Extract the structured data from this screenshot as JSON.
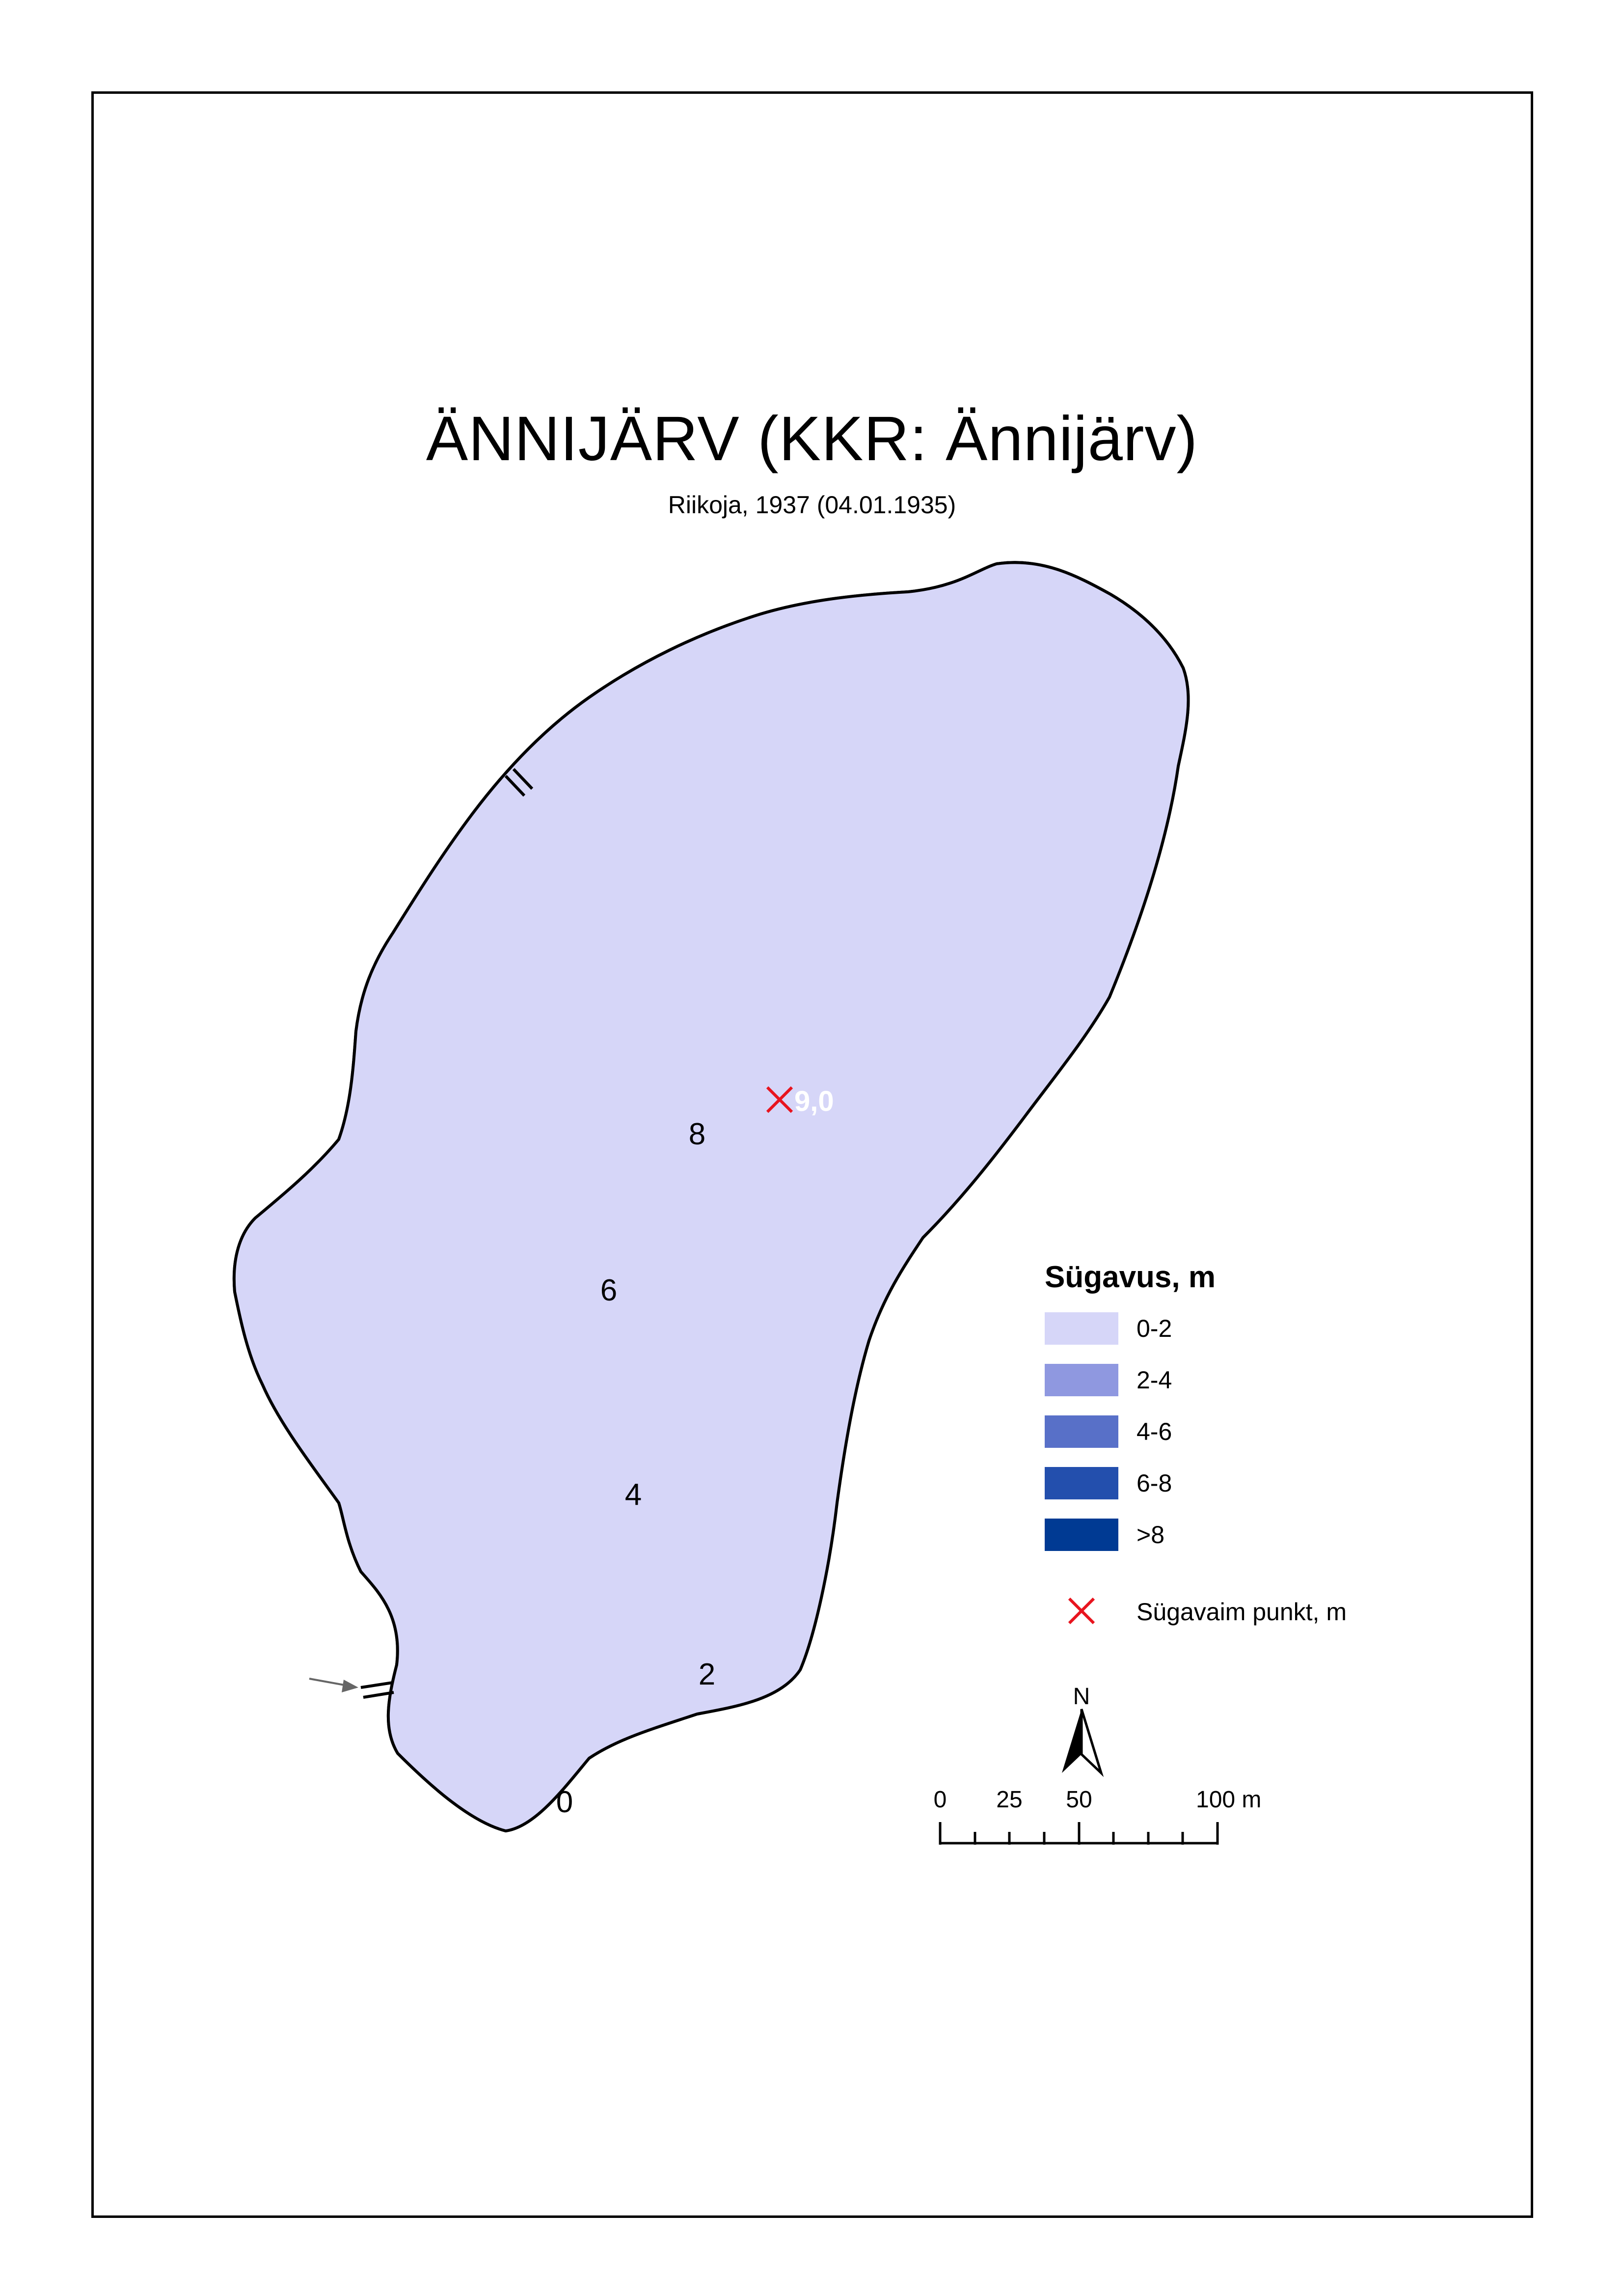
{
  "title": "ÄNNIJÄRV (KKR: Ännijärv)",
  "subtitle": "Riikoja, 1937 (04.01.1935)",
  "colors": {
    "depth_0_2": "#d6d6f8",
    "depth_2_4": "#8f98e0",
    "depth_4_6": "#5870c8",
    "depth_6_8": "#234fad",
    "depth_gt8": "#003a93",
    "deepest_marker": "#e8141e",
    "shoreline": "#000000"
  },
  "contour_labels": [
    "0",
    "2",
    "4",
    "6",
    "8"
  ],
  "deepest_point": {
    "value": "9,0",
    "icon": "x-cross-icon"
  },
  "legend": {
    "title": "Sügavus, m",
    "items": [
      {
        "label": "0-2"
      },
      {
        "label": "2-4"
      },
      {
        "label": "4-6"
      },
      {
        "label": "6-8"
      },
      {
        "label": ">8"
      }
    ],
    "point_label": "Sügavaim punkt, m"
  },
  "north_arrow": {
    "label": "N",
    "icon": "north-arrow-icon"
  },
  "scale_bar": {
    "labels": [
      "0",
      "25",
      "50",
      "100 m"
    ]
  },
  "inflow_marker": {
    "icon": "inflow-arrow-icon"
  }
}
